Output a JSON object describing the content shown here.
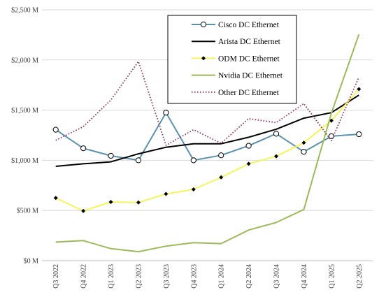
{
  "chart_data": {
    "type": "line",
    "x": [
      "Q3 2022",
      "Q4 2022",
      "Q1 2023",
      "Q2 2023",
      "Q3 2023",
      "Q4 2023",
      "Q1 2024",
      "Q2 2024",
      "Q3 2024",
      "Q4 2024",
      "Q1 2025",
      "Q2 2025"
    ],
    "y_ticks": [
      "$0 M",
      "$500 M",
      "$1,000 M",
      "$1,500 M",
      "$2,000 M",
      "$2,500 M"
    ],
    "ylim": [
      0,
      2500
    ],
    "y_unit": "$M",
    "grid": "horizontal",
    "legend_position": "top-right",
    "series": [
      {
        "name": "Cisco DC Ethernet",
        "color": "#5b91ad",
        "style": "solid-open-circle",
        "values": [
          1305,
          1120,
          1045,
          1000,
          1475,
          1000,
          1050,
          1145,
          1265,
          1085,
          1240,
          1260
        ]
      },
      {
        "name": "Arista DC Ethernet",
        "color": "#000000",
        "style": "solid",
        "values": [
          940,
          965,
          985,
          1065,
          1130,
          1165,
          1165,
          1230,
          1310,
          1420,
          1475,
          1650
        ]
      },
      {
        "name": "ODM DC Ethernet",
        "color": "#f4f55a",
        "style": "solid-diamond",
        "values": [
          625,
          495,
          585,
          580,
          665,
          710,
          830,
          965,
          1040,
          1175,
          1395,
          1710
        ]
      },
      {
        "name": "Nvidia DC Ethernet",
        "color": "#9bbb59",
        "style": "solid",
        "values": [
          185,
          200,
          120,
          90,
          145,
          180,
          170,
          305,
          380,
          510,
          1470,
          2255
        ]
      },
      {
        "name": "Other DC Ethernet",
        "color": "#8b2c5a",
        "style": "dotted",
        "values": [
          1200,
          1335,
          1600,
          1985,
          1150,
          1305,
          1170,
          1415,
          1375,
          1565,
          1195,
          1830
        ]
      }
    ]
  }
}
